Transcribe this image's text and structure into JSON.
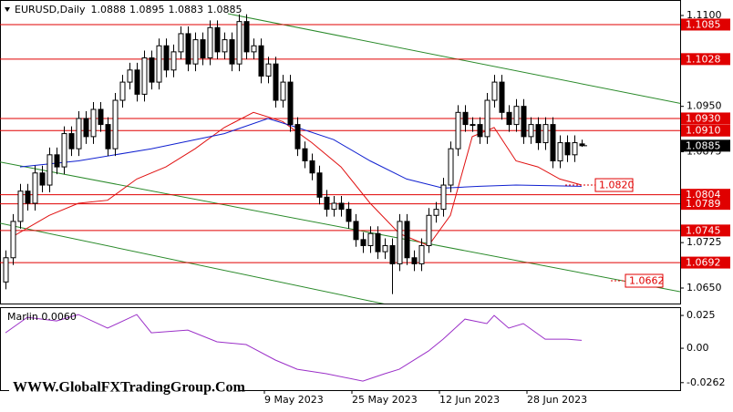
{
  "chart_data": {
    "type": "candlestick",
    "symbol": "EURUSD,Daily",
    "x": [
      0,
      1,
      2,
      3,
      4,
      5,
      6,
      7,
      8,
      9,
      10,
      11,
      12,
      13,
      14,
      15,
      16,
      17,
      18,
      19,
      20,
      21,
      22,
      23,
      24,
      25,
      26,
      27,
      28,
      29,
      30,
      31,
      32,
      33,
      34,
      35,
      36,
      37,
      38,
      39,
      40,
      41,
      42,
      43,
      44,
      45,
      46,
      47,
      48,
      49,
      50,
      51,
      52,
      53,
      54,
      55,
      56,
      57,
      58,
      59,
      60,
      61,
      62,
      63,
      64,
      65,
      66,
      67,
      68,
      69,
      70,
      71,
      72,
      73,
      74,
      75,
      76,
      77,
      78,
      79
    ],
    "open": [
      1.066,
      1.07,
      1.076,
      1.081,
      1.079,
      1.084,
      1.082,
      1.087,
      1.085,
      1.0905,
      1.088,
      1.093,
      1.09,
      1.0945,
      1.092,
      1.088,
      1.096,
      1.099,
      1.101,
      1.097,
      1.103,
      1.099,
      1.105,
      1.101,
      1.104,
      1.107,
      1.102,
      1.106,
      1.103,
      1.108,
      1.104,
      1.106,
      1.102,
      1.109,
      1.104,
      1.105,
      1.1,
      1.102,
      1.096,
      1.099,
      1.092,
      1.088,
      1.086,
      1.084,
      1.08,
      1.078,
      1.079,
      1.078,
      1.076,
      1.073,
      1.072,
      1.074,
      1.071,
      1.072,
      1.069,
      1.076,
      1.07,
      1.069,
      1.072,
      1.077,
      1.078,
      1.082,
      1.088,
      1.094,
      1.092,
      1.092,
      1.09,
      1.096,
      1.099,
      1.094,
      1.092,
      1.095,
      1.09,
      1.092,
      1.089,
      1.092,
      1.086,
      1.089,
      1.087,
      1.0888
    ],
    "high": [
      1.0712,
      1.0772,
      1.0822,
      1.0822,
      1.0852,
      1.0852,
      1.0882,
      1.0882,
      1.0917,
      1.0917,
      1.0942,
      1.0942,
      1.0957,
      1.0957,
      1.0932,
      1.0972,
      1.1002,
      1.1022,
      1.1022,
      1.1042,
      1.1042,
      1.1062,
      1.1062,
      1.1052,
      1.1082,
      1.1082,
      1.1072,
      1.1072,
      1.1092,
      1.1092,
      1.1072,
      1.1072,
      1.1102,
      1.1102,
      1.1062,
      1.1062,
      1.1032,
      1.1032,
      1.1002,
      1.1002,
      1.0932,
      1.0892,
      1.0872,
      1.0852,
      1.0812,
      1.0802,
      1.0802,
      1.0792,
      1.0772,
      1.0742,
      1.0752,
      1.0752,
      1.0732,
      1.0732,
      1.0772,
      1.0772,
      1.0712,
      1.0732,
      1.0782,
      1.0792,
      1.0832,
      1.0892,
      1.0952,
      1.0952,
      1.0932,
      1.0932,
      1.0972,
      1.1002,
      1.1002,
      1.0952,
      1.0962,
      1.0962,
      1.0932,
      1.0932,
      1.0932,
      1.0932,
      1.0902,
      1.0902,
      1.0902,
      1.0895
    ],
    "low": [
      1.0648,
      1.0688,
      1.0748,
      1.0778,
      1.0778,
      1.0808,
      1.0808,
      1.0838,
      1.0838,
      1.0868,
      1.0868,
      1.0888,
      1.0888,
      1.0908,
      1.0868,
      1.0868,
      1.0948,
      1.0978,
      1.0958,
      1.0958,
      1.0978,
      1.0978,
      1.0998,
      1.0998,
      1.1028,
      1.1008,
      1.1008,
      1.1018,
      1.1018,
      1.1028,
      1.1028,
      1.1008,
      1.1008,
      1.1028,
      1.1028,
      1.0988,
      1.0988,
      1.0948,
      1.0948,
      1.0908,
      1.0868,
      1.0848,
      1.0828,
      1.0788,
      1.0768,
      1.0768,
      1.0768,
      1.0748,
      1.0718,
      1.0708,
      1.0708,
      1.0698,
      1.0698,
      1.064,
      1.0678,
      1.0688,
      1.0678,
      1.0678,
      1.0708,
      1.0758,
      1.0768,
      1.0808,
      1.0868,
      1.0908,
      1.0908,
      1.0888,
      1.0888,
      1.0948,
      1.0928,
      1.0908,
      1.0908,
      1.0888,
      1.0888,
      1.0878,
      1.0878,
      1.0848,
      1.0848,
      1.0858,
      1.0858,
      1.0883
    ],
    "close": [
      1.07,
      1.076,
      1.081,
      1.079,
      1.084,
      1.082,
      1.087,
      1.085,
      1.0905,
      1.088,
      1.093,
      1.09,
      1.0945,
      1.092,
      1.088,
      1.096,
      1.099,
      1.101,
      1.097,
      1.103,
      1.099,
      1.105,
      1.101,
      1.104,
      1.107,
      1.102,
      1.106,
      1.103,
      1.108,
      1.104,
      1.106,
      1.102,
      1.109,
      1.104,
      1.105,
      1.1,
      1.102,
      1.096,
      1.099,
      1.092,
      1.088,
      1.086,
      1.084,
      1.08,
      1.078,
      1.079,
      1.078,
      1.076,
      1.073,
      1.072,
      1.074,
      1.071,
      1.072,
      1.069,
      1.076,
      1.07,
      1.069,
      1.072,
      1.077,
      1.078,
      1.082,
      1.088,
      1.094,
      1.092,
      1.092,
      1.09,
      1.096,
      1.099,
      1.094,
      1.092,
      1.095,
      1.09,
      1.092,
      1.089,
      1.092,
      1.086,
      1.089,
      1.087,
      1.089,
      1.0885
    ],
    "xlim": [
      -0.75,
      92.5
    ],
    "xticks": [
      {
        "value": 35.5,
        "label": "9 May 2023"
      },
      {
        "value": 47.5,
        "label": "25 May 2023"
      },
      {
        "value": 59.5,
        "label": "12 Jun 2023"
      },
      {
        "value": 71.5,
        "label": "28 Jun 2023"
      }
    ],
    "ylim": [
      1.06244,
      1.11256
    ],
    "yticks": [
      {
        "value": 1.11,
        "label": "1.1100"
      },
      {
        "value": 1.095,
        "label": "1.0950"
      },
      1.0875,
      1.0725,
      {
        "value": 1.065,
        "label": "1.0650"
      }
    ],
    "level_color": "#e00000",
    "levels": [
      1.1085,
      1.1028,
      {
        "value": 1.093,
        "label": "1.0930"
      },
      {
        "value": 1.091,
        "label": "1.0910"
      },
      1.0804,
      1.0789,
      1.0745,
      1.0692
    ],
    "annotations": [
      {
        "value": 1.082,
        "label": "1.0820"
      },
      1.0662
    ],
    "moving_averages": [
      {
        "color": "#e01010",
        "x": [
          1,
          6,
          10,
          14,
          18,
          22,
          26,
          30,
          34,
          38,
          42,
          46,
          50,
          54,
          58,
          61,
          64,
          67,
          70,
          73,
          76,
          79
        ],
        "values": [
          1.0735,
          1.077,
          1.079,
          1.0795,
          1.083,
          1.085,
          1.088,
          1.0915,
          1.094,
          1.0925,
          1.089,
          1.085,
          1.079,
          1.074,
          1.072,
          1.077,
          1.09,
          1.0915,
          1.086,
          1.085,
          1.083,
          1.082
        ]
      },
      {
        "color": "#1020d0",
        "x": [
          2,
          10,
          20,
          30,
          36,
          40,
          45,
          50,
          55,
          60,
          65,
          70,
          79
        ],
        "values": [
          1.085,
          1.086,
          1.088,
          1.0905,
          1.093,
          1.0915,
          1.0895,
          1.086,
          1.083,
          1.0815,
          1.0818,
          1.082,
          1.0818
        ]
      }
    ],
    "trendlines": [
      {
        "color": "#2a8a2a",
        "x": [
          30.5,
          92.5
        ],
        "values": [
          1.1103,
          1.0955
        ]
      },
      {
        "color": "#2a8a2a",
        "x": [
          -0.75,
          92.5
        ],
        "values": [
          1.0858,
          1.0644
        ]
      },
      {
        "color": "#2a8a2a",
        "x": [
          -0.75,
          53
        ],
        "values": [
          1.0757,
          1.0621
        ]
      }
    ],
    "indicator": {
      "title": "Marlin 0.0060",
      "color": "#9b30c8",
      "ylim": [
        -0.0319,
        0.0313
      ],
      "yticks": [
        0.025,
        {
          "value": 0,
          "label": "0.00"
        },
        -0.0262
      ],
      "x": [
        0,
        3,
        7,
        10,
        14,
        18,
        20,
        25,
        29,
        33,
        37,
        40,
        44,
        49,
        52,
        54,
        58,
        60,
        63,
        66,
        67,
        69,
        71,
        74,
        77,
        79
      ],
      "values": [
        0.0118,
        0.0236,
        0.0208,
        0.0257,
        0.0153,
        0.0257,
        0.0118,
        0.0139,
        0.0049,
        0.0028,
        -0.009,
        -0.016,
        -0.0194,
        -0.025,
        -0.0194,
        -0.016,
        -0.0021,
        0.0069,
        0.0222,
        0.0188,
        0.025,
        0.0153,
        0.0188,
        0.0069,
        0.0069,
        0.006
      ]
    }
  },
  "watermark": "WWW.GlobalFXTradingGroup.Com"
}
